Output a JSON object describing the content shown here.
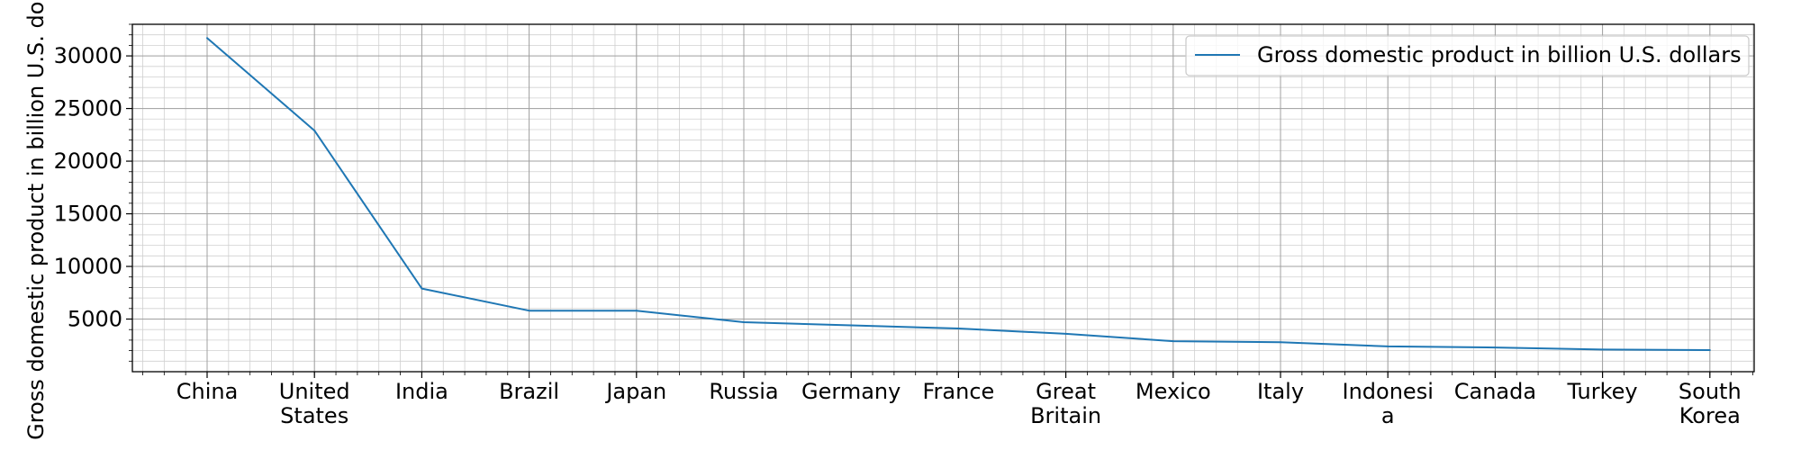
{
  "chart_data": {
    "type": "line",
    "title": "",
    "xlabel": "",
    "ylabel": "Gross domestic product in billion U.S. dollars",
    "categories": [
      "China",
      "United States",
      "India",
      "Brazil",
      "Japan",
      "Russia",
      "Germany",
      "France",
      "Great Britain",
      "Mexico",
      "Italy",
      "Indonesia",
      "Canada",
      "Turkey",
      "South Korea"
    ],
    "category_tick_lines": [
      [
        "China"
      ],
      [
        "United",
        "States"
      ],
      [
        "India"
      ],
      [
        "Brazil"
      ],
      [
        "Japan"
      ],
      [
        "Russia"
      ],
      [
        "Germany"
      ],
      [
        "France"
      ],
      [
        "Great",
        "Britain"
      ],
      [
        "Mexico"
      ],
      [
        "Italy"
      ],
      [
        "Indonesi",
        "a"
      ],
      [
        "Canada"
      ],
      [
        "Turkey"
      ],
      [
        "South",
        "Korea"
      ]
    ],
    "series": [
      {
        "name": "Gross domestic product in billion U.S. dollars",
        "color": "#1f77b4",
        "values": [
          31700,
          22900,
          7900,
          5800,
          5800,
          4700,
          4400,
          4100,
          3600,
          2900,
          2800,
          2400,
          2300,
          2100,
          2050
        ]
      }
    ],
    "ylim": [
      0,
      33000
    ],
    "yticks": [
      5000,
      10000,
      15000,
      20000,
      25000,
      30000
    ],
    "grid": true,
    "grid_minor": true,
    "legend_position": "top-right"
  }
}
